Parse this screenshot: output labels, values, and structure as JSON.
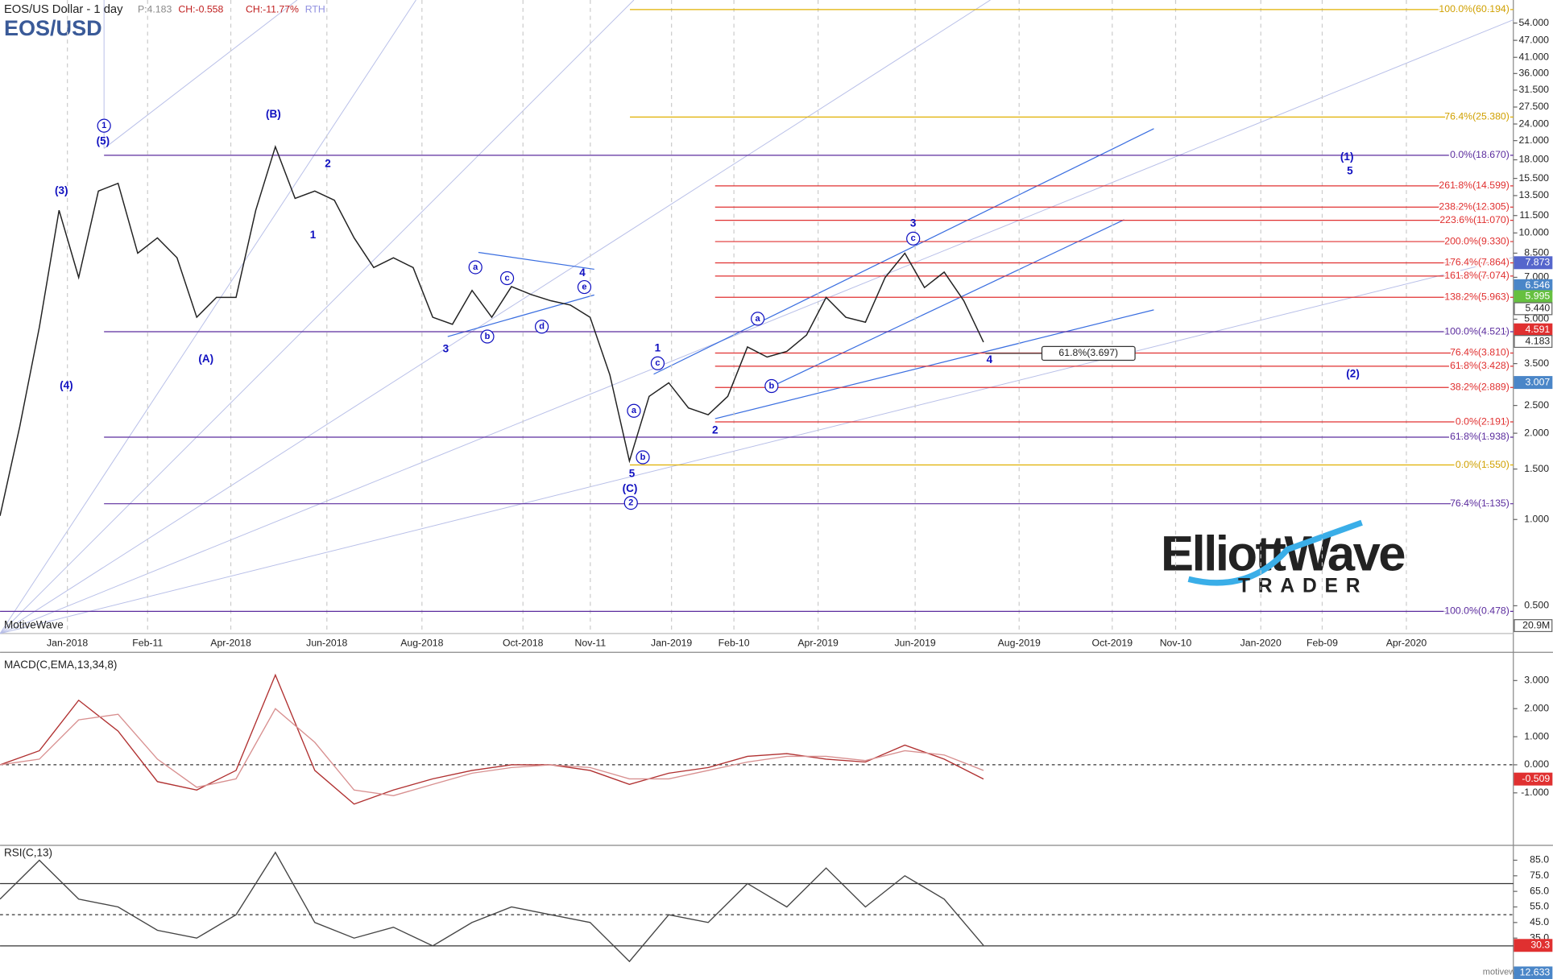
{
  "header": {
    "instrument": "EOS/US Dollar - 1 day",
    "price": "P:4.183",
    "change": "CH:-0.558",
    "change_pct": "CH:-11.77%",
    "session": "RTH"
  },
  "watermark": {
    "platform": "MotiveWave",
    "site": "motivewave.com"
  },
  "logo": {
    "brand": "ElliottWave",
    "sub": "TRADER"
  },
  "annotations": [
    {
      "text": "1",
      "circled": true
    },
    {
      "text": "(5)"
    },
    {
      "text": "(3)"
    },
    {
      "text": "(4)"
    },
    {
      "text": "(B)"
    },
    {
      "text": "(A)"
    },
    {
      "text": "2"
    },
    {
      "text": "1"
    },
    {
      "text": "3"
    },
    {
      "text": "4"
    },
    {
      "text": "a",
      "circled": true
    },
    {
      "text": "b",
      "circled": true
    },
    {
      "text": "c",
      "circled": true
    },
    {
      "text": "d",
      "circled": true
    },
    {
      "text": "e",
      "circled": true
    },
    {
      "text": "1"
    },
    {
      "text": "c",
      "circled": true
    },
    {
      "text": "a",
      "circled": true
    },
    {
      "text": "b",
      "circled": true
    },
    {
      "text": "5"
    },
    {
      "text": "(C)"
    },
    {
      "text": "2",
      "circled": true
    },
    {
      "text": "2"
    },
    {
      "text": "a",
      "circled": true
    },
    {
      "text": "b",
      "circled": true
    },
    {
      "text": "3"
    },
    {
      "text": "c",
      "circled": true
    },
    {
      "text": "4"
    },
    {
      "text": "(1)"
    },
    {
      "text": "5"
    },
    {
      "text": "(2)"
    },
    {
      "text": "61.8%(3.697)",
      "boxed": true
    }
  ],
  "chart_data": [
    {
      "type": "line",
      "title": "EOS/USD",
      "log": true,
      "color": "#222222",
      "x_labels": [
        "Jan-2018",
        "Feb-11",
        "Apr-2018",
        "Jun-2018",
        "Aug-2018",
        "Oct-2018",
        "Nov-11",
        "Jan-2019",
        "Feb-10",
        "Apr-2019",
        "Jun-2019",
        "Aug-2019",
        "Oct-2019",
        "Nov-10",
        "Jan-2020",
        "Feb-09",
        "Apr-2020"
      ],
      "values": [
        1.03,
        2.11,
        4.69,
        12,
        6.99,
        14,
        14.9,
        8.5,
        9.61,
        8.19,
        5.08,
        5.96,
        5.96,
        12,
        20,
        13.2,
        14,
        13,
        9.61,
        7.57,
        8.19,
        7.57,
        5.08,
        4.8,
        6.3,
        5.08,
        6.5,
        6.1,
        5.8,
        5.6,
        5.08,
        3.2,
        1.6,
        2.69,
        3.0,
        2.45,
        2.32,
        2.69,
        4.0,
        3.69,
        3.86,
        4.4,
        5.96,
        5.08,
        4.88,
        6.99,
        8.5,
        6.45,
        7.3,
        5.8,
        4.16
      ],
      "ylim": [
        0.4,
        65
      ],
      "yticks": [
        {
          "value": 54,
          "label": "54.000"
        },
        {
          "value": 47,
          "label": "47.000"
        },
        {
          "value": 41,
          "label": "41.000"
        },
        {
          "value": 36,
          "label": "36.000"
        },
        {
          "value": 31.5,
          "label": "31.500"
        },
        {
          "value": 27.5,
          "label": "27.500"
        },
        {
          "value": 24,
          "label": "24.000"
        },
        {
          "value": 21,
          "label": "21.000"
        },
        {
          "value": 18,
          "label": "18.000"
        },
        {
          "value": 15.5,
          "label": "15.500"
        },
        {
          "value": 13.5,
          "label": "13.500"
        },
        {
          "value": 11.5,
          "label": "11.500"
        },
        {
          "value": 10,
          "label": "10.000"
        },
        {
          "value": 8.5,
          "label": "8.500"
        },
        {
          "value": 7,
          "label": "7.000"
        },
        {
          "value": 5,
          "label": "5.000"
        },
        {
          "value": 3.5,
          "label": "3.500"
        },
        {
          "value": 2.5,
          "label": "2.500"
        },
        {
          "value": 2,
          "label": "2.000"
        },
        {
          "value": 1.5,
          "label": "1.500"
        },
        {
          "value": 1,
          "label": "1.000"
        },
        {
          "value": 0.5,
          "label": "0.500"
        }
      ],
      "levels": [
        {
          "label": "100.0%(60.194)",
          "value": 60.194,
          "color": "#e0b000",
          "start": "gold"
        },
        {
          "label": "76.4%(25.380)",
          "value": 25.38,
          "color": "#e0b000",
          "start": "gold"
        },
        {
          "label": "0.0%(18.670)",
          "value": 18.67,
          "color": "#5b2c9e",
          "start": "purple"
        },
        {
          "label": "261.8%(14.599)",
          "value": 14.599,
          "color": "#e03030",
          "start": "red"
        },
        {
          "label": "238.2%(12.305)",
          "value": 12.305,
          "color": "#e03030",
          "start": "red"
        },
        {
          "label": "223.6%(11.070)",
          "value": 11.07,
          "color": "#e03030",
          "start": "red"
        },
        {
          "label": "200.0%(9.330)",
          "value": 9.33,
          "color": "#e03030",
          "start": "red"
        },
        {
          "label": "176.4%(7.864)",
          "value": 7.864,
          "color": "#e03030",
          "start": "red"
        },
        {
          "label": "161.8%(7.074)",
          "value": 7.074,
          "color": "#e03030",
          "start": "red"
        },
        {
          "label": "138.2%(5.963)",
          "value": 5.963,
          "color": "#e03030",
          "start": "red"
        },
        {
          "label": "100.0%(4.521)",
          "value": 4.521,
          "color": "#5b2c9e",
          "start": "purple"
        },
        {
          "label": "76.4%(3.810)",
          "value": 3.81,
          "color": "#e03030",
          "start": "red"
        },
        {
          "label": "61.8%(3.428)",
          "value": 3.428,
          "color": "#e03030",
          "start": "red"
        },
        {
          "label": "38.2%(2.889)",
          "value": 2.889,
          "color": "#e03030",
          "start": "red"
        },
        {
          "label": "0.0%(2.191)",
          "value": 2.191,
          "color": "#e03030",
          "start": "red"
        },
        {
          "label": "61.8%(1.938)",
          "value": 1.938,
          "color": "#5b2c9e",
          "start": "purple"
        },
        {
          "label": "0.0%(1.550)",
          "value": 1.55,
          "color": "#e0b000",
          "start": "gold"
        },
        {
          "label": "76.4%(1.135)",
          "value": 1.135,
          "color": "#5b2c9e",
          "start": "purple"
        },
        {
          "label": "100.0%(0.478)",
          "value": 0.478,
          "color": "#5b2c9e",
          "start": "purple"
        }
      ],
      "badges": [
        {
          "value": 7.873,
          "label": "7.873",
          "color": "#5566cc"
        },
        {
          "value": 6.546,
          "label": "6.546",
          "color": "#4a86c8"
        },
        {
          "value": 5.995,
          "label": "5.995",
          "color": "#66c040"
        },
        {
          "value": 5.44,
          "label": "5.440",
          "color": "#ffffff"
        },
        {
          "value": 4.591,
          "label": "4.591",
          "color": "#e03030"
        },
        {
          "value": 4.183,
          "label": "4.183",
          "color": "#ffffff"
        },
        {
          "value": 3.007,
          "label": "3.007",
          "color": "#4a86c8"
        }
      ],
      "volume_badge": {
        "value": 20900000,
        "label": "20.9M"
      }
    },
    {
      "type": "line",
      "title": "MACD(C,EMA,13,34,8)",
      "series": [
        {
          "color": "#b03030",
          "values": [
            0,
            0.5,
            2.3,
            1.2,
            -0.6,
            -0.9,
            -0.2,
            3.2,
            -0.2,
            -1.4,
            -0.9,
            -0.5,
            -0.2,
            0,
            0,
            -0.2,
            -0.7,
            -0.3,
            -0.1,
            0.3,
            0.4,
            0.2,
            0.1,
            0.7,
            0.2,
            -0.509
          ]
        },
        {
          "color": "#d89090",
          "values": [
            0,
            0.2,
            1.6,
            1.8,
            0.2,
            -0.8,
            -0.5,
            2.0,
            0.8,
            -0.9,
            -1.1,
            -0.7,
            -0.3,
            -0.1,
            0,
            -0.1,
            -0.5,
            -0.5,
            -0.2,
            0.1,
            0.3,
            0.3,
            0.15,
            0.5,
            0.35,
            -0.2
          ]
        }
      ],
      "ylim": [
        -2.8,
        3.9
      ],
      "yticks": [
        {
          "value": 3,
          "label": "3.000"
        },
        {
          "value": 2,
          "label": "2.000"
        },
        {
          "value": 1,
          "label": "1.000"
        },
        {
          "value": 0,
          "label": "0.000"
        },
        {
          "value": -1,
          "label": "-1.000"
        }
      ],
      "badges": [
        {
          "value": -0.509,
          "label": "-0.509",
          "color": "#e03030"
        }
      ]
    },
    {
      "type": "line",
      "title": "RSI(C,13)",
      "series": [
        {
          "color": "#444444",
          "values": [
            60,
            85,
            60,
            55,
            40,
            35,
            50,
            90,
            45,
            35,
            42,
            30,
            45,
            55,
            50,
            45,
            20,
            50,
            45,
            70,
            55,
            80,
            55,
            75,
            60,
            30.3
          ]
        }
      ],
      "ylim": [
        10,
        92
      ],
      "yticks": [
        {
          "value": 85,
          "label": "85.0"
        },
        {
          "value": 75,
          "label": "75.0"
        },
        {
          "value": 65,
          "label": "65.0"
        },
        {
          "value": 55,
          "label": "55.0"
        },
        {
          "value": 45,
          "label": "45.0"
        },
        {
          "value": 35,
          "label": "35.0"
        }
      ],
      "levels": [
        70,
        50,
        30
      ],
      "badges": [
        {
          "value": 30.3,
          "label": "30.3",
          "color": "#e03030"
        },
        {
          "value": 12.633,
          "label": "12.633",
          "color": "#4a86c8"
        }
      ]
    }
  ]
}
